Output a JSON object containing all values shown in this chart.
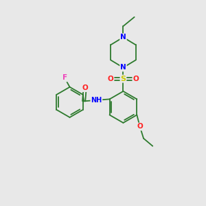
{
  "bg_color": "#e8e8e8",
  "bond_color": "#2d7a2d",
  "atom_colors": {
    "N": "#0000ff",
    "O": "#ff2222",
    "F": "#ee44bb",
    "S": "#cccc00",
    "C": "#2d7a2d",
    "H": "#2d7a2d"
  },
  "font_size": 7.5,
  "figsize": [
    3.0,
    3.0
  ],
  "dpi": 100
}
